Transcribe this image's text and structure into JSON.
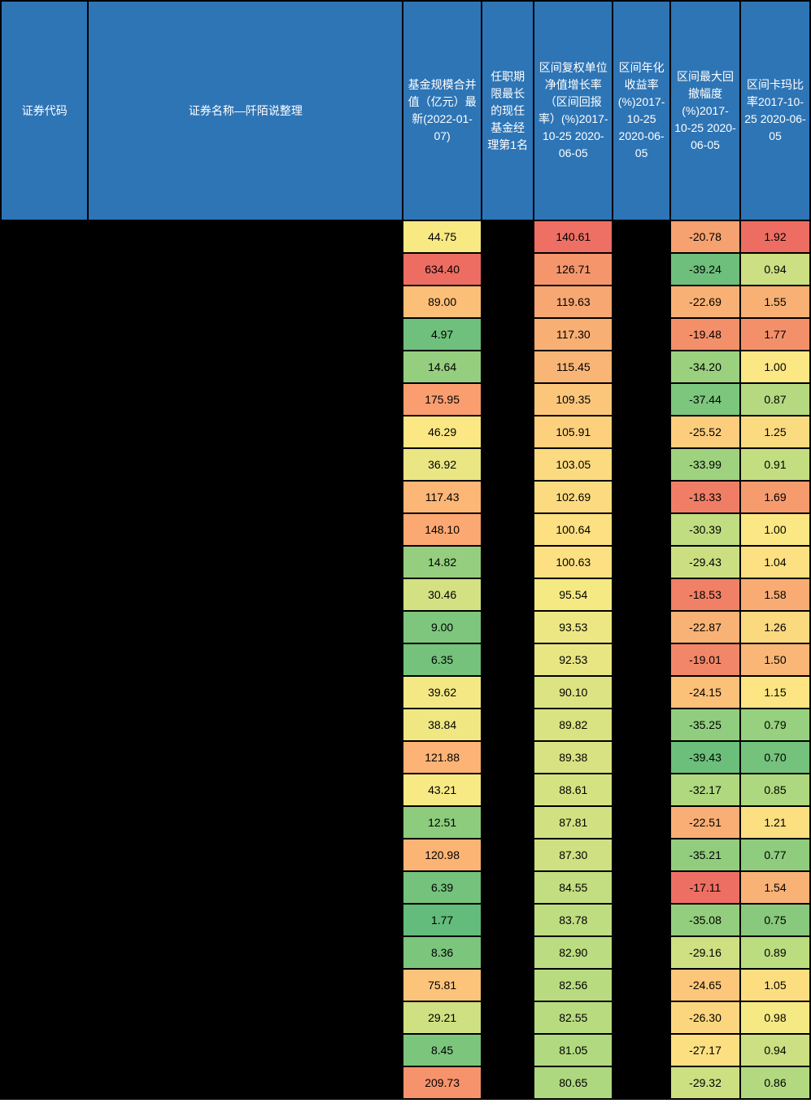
{
  "headers": {
    "code": "证券代码",
    "name": "证券名称—阡陌说整理",
    "scale": "基金规模合并值（亿元）最新(2022-01-07)",
    "manager": "任职期限最长的现任基金经理第1名",
    "growth": "区间复权单位净值增长率（区间回报率）(%)2017-10-25 2020-06-05",
    "annual": "区间年化收益率(%)2017-10-25 2020-06-05",
    "drawdown": "区间最大回撤幅度(%)2017-10-25 2020-06-05",
    "calmar": "区间卡玛比率2017-10-25 2020-06-05"
  },
  "colors": {
    "header_bg": "#2e75b6",
    "header_text": "#ffffff",
    "black": "#000000"
  },
  "rows": [
    {
      "scale": {
        "v": "44.75",
        "c": "#f9e983"
      },
      "growth": {
        "v": "140.61",
        "c": "#ee6f63"
      },
      "drawdown": {
        "v": "-20.78",
        "c": "#f6a170"
      },
      "calmar": {
        "v": "1.92",
        "c": "#ed6d62"
      }
    },
    {
      "scale": {
        "v": "634.40",
        "c": "#ed6d62"
      },
      "growth": {
        "v": "126.71",
        "c": "#f5956c"
      },
      "drawdown": {
        "v": "-39.24",
        "c": "#6ebf7c"
      },
      "calmar": {
        "v": "0.94",
        "c": "#ccdf82"
      }
    },
    {
      "scale": {
        "v": "89.00",
        "c": "#fcbf78"
      },
      "growth": {
        "v": "119.63",
        "c": "#f7a772"
      },
      "drawdown": {
        "v": "-22.69",
        "c": "#f8b074"
      },
      "calmar": {
        "v": "1.55",
        "c": "#f8b074"
      }
    },
    {
      "scale": {
        "v": "4.97",
        "c": "#6fc07c"
      },
      "growth": {
        "v": "117.30",
        "c": "#f8af74"
      },
      "drawdown": {
        "v": "-19.48",
        "c": "#f3906a"
      },
      "calmar": {
        "v": "1.77",
        "c": "#f3906a"
      }
    },
    {
      "scale": {
        "v": "14.64",
        "c": "#94ce7e"
      },
      "growth": {
        "v": "115.45",
        "c": "#f9b575"
      },
      "drawdown": {
        "v": "-34.20",
        "c": "#9bd17e"
      },
      "calmar": {
        "v": "1.00",
        "c": "#fbe783"
      }
    },
    {
      "scale": {
        "v": "175.95",
        "c": "#fa9e70"
      },
      "growth": {
        "v": "109.35",
        "c": "#fcc67a"
      },
      "drawdown": {
        "v": "-37.44",
        "c": "#7dc67d"
      },
      "calmar": {
        "v": "0.87",
        "c": "#b4d980"
      }
    },
    {
      "scale": {
        "v": "46.29",
        "c": "#fbe783"
      },
      "growth": {
        "v": "105.91",
        "c": "#fcd07c"
      },
      "drawdown": {
        "v": "-25.52",
        "c": "#fccd7c"
      },
      "calmar": {
        "v": "1.25",
        "c": "#fbdb80"
      }
    },
    {
      "scale": {
        "v": "36.92",
        "c": "#eae683"
      },
      "growth": {
        "v": "103.05",
        "c": "#fcda7f"
      },
      "drawdown": {
        "v": "-33.99",
        "c": "#9ed27e"
      },
      "calmar": {
        "v": "0.91",
        "c": "#c2de81"
      }
    },
    {
      "scale": {
        "v": "117.43",
        "c": "#fcb676"
      },
      "growth": {
        "v": "102.69",
        "c": "#fcdb80"
      },
      "drawdown": {
        "v": "-18.33",
        "c": "#f07e66"
      },
      "calmar": {
        "v": "1.69",
        "c": "#f59b6e"
      }
    },
    {
      "scale": {
        "v": "148.10",
        "c": "#fca872"
      },
      "growth": {
        "v": "100.64",
        "c": "#fce081"
      },
      "drawdown": {
        "v": "-30.39",
        "c": "#c1dd81"
      },
      "calmar": {
        "v": "1.00",
        "c": "#fbe783"
      }
    },
    {
      "scale": {
        "v": "14.82",
        "c": "#95ce7e"
      },
      "growth": {
        "v": "100.63",
        "c": "#fce081"
      },
      "drawdown": {
        "v": "-29.43",
        "c": "#cbdf82"
      },
      "calmar": {
        "v": "1.04",
        "c": "#fce081"
      }
    },
    {
      "scale": {
        "v": "30.46",
        "c": "#d4e182"
      },
      "growth": {
        "v": "95.54",
        "c": "#f5e984"
      },
      "drawdown": {
        "v": "-18.53",
        "c": "#f08066"
      },
      "calmar": {
        "v": "1.58",
        "c": "#f8ac73"
      }
    },
    {
      "scale": {
        "v": "9.00",
        "c": "#7ec67d"
      },
      "growth": {
        "v": "93.53",
        "c": "#ece783"
      },
      "drawdown": {
        "v": "-22.87",
        "c": "#f9b275"
      },
      "calmar": {
        "v": "1.26",
        "c": "#fbd97f"
      }
    },
    {
      "scale": {
        "v": "6.35",
        "c": "#74c27c"
      },
      "growth": {
        "v": "92.53",
        "c": "#e7e683"
      },
      "drawdown": {
        "v": "-19.01",
        "c": "#f18768"
      },
      "calmar": {
        "v": "1.50",
        "c": "#f9b676"
      }
    },
    {
      "scale": {
        "v": "39.62",
        "c": "#f3e884"
      },
      "growth": {
        "v": "90.10",
        "c": "#dce382"
      },
      "drawdown": {
        "v": "-24.15",
        "c": "#fbc178"
      },
      "calmar": {
        "v": "1.15",
        "c": "#fce582"
      }
    },
    {
      "scale": {
        "v": "38.84",
        "c": "#f0e783"
      },
      "growth": {
        "v": "89.82",
        "c": "#dae382"
      },
      "drawdown": {
        "v": "-35.25",
        "c": "#91cd7e"
      },
      "calmar": {
        "v": "0.79",
        "c": "#97d07e"
      }
    },
    {
      "scale": {
        "v": "121.88",
        "c": "#fcb375"
      },
      "growth": {
        "v": "89.38",
        "c": "#d8e282"
      },
      "drawdown": {
        "v": "-39.43",
        "c": "#6cbf7b"
      },
      "calmar": {
        "v": "0.70",
        "c": "#74c27c"
      }
    },
    {
      "scale": {
        "v": "43.21",
        "c": "#f7e984"
      },
      "growth": {
        "v": "88.61",
        "c": "#d5e282"
      },
      "drawdown": {
        "v": "-32.17",
        "c": "#afd87f"
      },
      "calmar": {
        "v": "0.85",
        "c": "#aed87f"
      }
    },
    {
      "scale": {
        "v": "12.51",
        "c": "#8dcc7d"
      },
      "growth": {
        "v": "87.81",
        "c": "#d1e182"
      },
      "drawdown": {
        "v": "-22.51",
        "c": "#f8ae74"
      },
      "calmar": {
        "v": "1.21",
        "c": "#fcdf80"
      }
    },
    {
      "scale": {
        "v": "120.98",
        "c": "#fcb475"
      },
      "growth": {
        "v": "87.30",
        "c": "#cfe082"
      },
      "drawdown": {
        "v": "-35.21",
        "c": "#92cd7e"
      },
      "calmar": {
        "v": "0.77",
        "c": "#8fcc7e"
      }
    },
    {
      "scale": {
        "v": "6.39",
        "c": "#74c27c"
      },
      "growth": {
        "v": "84.55",
        "c": "#c2de81"
      },
      "drawdown": {
        "v": "-17.11",
        "c": "#ed6f63"
      },
      "calmar": {
        "v": "1.54",
        "c": "#f9b275"
      }
    },
    {
      "scale": {
        "v": "1.77",
        "c": "#63bc7b"
      },
      "growth": {
        "v": "83.78",
        "c": "#bedd81"
      },
      "drawdown": {
        "v": "-35.08",
        "c": "#93ce7e"
      },
      "calmar": {
        "v": "0.75",
        "c": "#88c97d"
      }
    },
    {
      "scale": {
        "v": "8.36",
        "c": "#7bc57d"
      },
      "growth": {
        "v": "82.90",
        "c": "#bbdc80"
      },
      "drawdown": {
        "v": "-29.16",
        "c": "#cee082"
      },
      "calmar": {
        "v": "0.89",
        "c": "#bcdc80"
      }
    },
    {
      "scale": {
        "v": "75.81",
        "c": "#fcc47a"
      },
      "growth": {
        "v": "82.56",
        "c": "#b8db80"
      },
      "drawdown": {
        "v": "-24.65",
        "c": "#fcc77a"
      },
      "calmar": {
        "v": "1.05",
        "c": "#fcde80"
      }
    },
    {
      "scale": {
        "v": "29.21",
        "c": "#cfe082"
      },
      "growth": {
        "v": "82.55",
        "c": "#b8db80"
      },
      "drawdown": {
        "v": "-26.30",
        "c": "#fcd67e"
      },
      "calmar": {
        "v": "0.98",
        "c": "#f5e984"
      }
    },
    {
      "scale": {
        "v": "8.45",
        "c": "#7cc57d"
      },
      "growth": {
        "v": "81.05",
        "c": "#b1d980"
      },
      "drawdown": {
        "v": "-27.17",
        "c": "#fcdf81"
      },
      "calmar": {
        "v": "0.94",
        "c": "#ccdf82"
      }
    },
    {
      "scale": {
        "v": "209.73",
        "c": "#f6936c"
      },
      "growth": {
        "v": "80.65",
        "c": "#aed87f"
      },
      "drawdown": {
        "v": "-29.32",
        "c": "#cce082"
      },
      "calmar": {
        "v": "0.86",
        "c": "#b2d980"
      }
    }
  ]
}
